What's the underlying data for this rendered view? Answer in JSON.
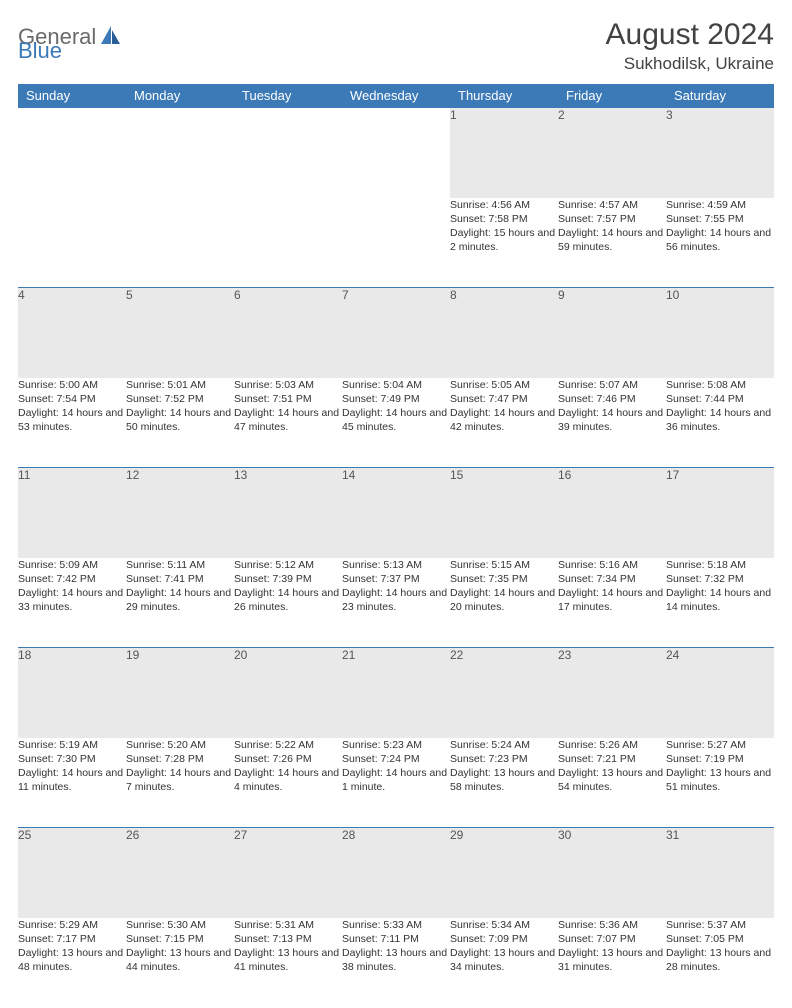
{
  "logo": {
    "general": "General",
    "blue": "Blue"
  },
  "header": {
    "month_title": "August 2024",
    "location": "Sukhodilsk, Ukraine"
  },
  "colors": {
    "accent": "#3b79b7",
    "header_text": "#ffffff",
    "daynum_bg": "#e9e9e9",
    "body_text": "#333333"
  },
  "day_headers": [
    "Sunday",
    "Monday",
    "Tuesday",
    "Wednesday",
    "Thursday",
    "Friday",
    "Saturday"
  ],
  "weeks": [
    {
      "nums": [
        "",
        "",
        "",
        "",
        "1",
        "2",
        "3"
      ],
      "info": [
        "",
        "",
        "",
        "",
        "Sunrise: 4:56 AM\nSunset: 7:58 PM\nDaylight: 15 hours and 2 minutes.",
        "Sunrise: 4:57 AM\nSunset: 7:57 PM\nDaylight: 14 hours and 59 minutes.",
        "Sunrise: 4:59 AM\nSunset: 7:55 PM\nDaylight: 14 hours and 56 minutes."
      ]
    },
    {
      "nums": [
        "4",
        "5",
        "6",
        "7",
        "8",
        "9",
        "10"
      ],
      "info": [
        "Sunrise: 5:00 AM\nSunset: 7:54 PM\nDaylight: 14 hours and 53 minutes.",
        "Sunrise: 5:01 AM\nSunset: 7:52 PM\nDaylight: 14 hours and 50 minutes.",
        "Sunrise: 5:03 AM\nSunset: 7:51 PM\nDaylight: 14 hours and 47 minutes.",
        "Sunrise: 5:04 AM\nSunset: 7:49 PM\nDaylight: 14 hours and 45 minutes.",
        "Sunrise: 5:05 AM\nSunset: 7:47 PM\nDaylight: 14 hours and 42 minutes.",
        "Sunrise: 5:07 AM\nSunset: 7:46 PM\nDaylight: 14 hours and 39 minutes.",
        "Sunrise: 5:08 AM\nSunset: 7:44 PM\nDaylight: 14 hours and 36 minutes."
      ]
    },
    {
      "nums": [
        "11",
        "12",
        "13",
        "14",
        "15",
        "16",
        "17"
      ],
      "info": [
        "Sunrise: 5:09 AM\nSunset: 7:42 PM\nDaylight: 14 hours and 33 minutes.",
        "Sunrise: 5:11 AM\nSunset: 7:41 PM\nDaylight: 14 hours and 29 minutes.",
        "Sunrise: 5:12 AM\nSunset: 7:39 PM\nDaylight: 14 hours and 26 minutes.",
        "Sunrise: 5:13 AM\nSunset: 7:37 PM\nDaylight: 14 hours and 23 minutes.",
        "Sunrise: 5:15 AM\nSunset: 7:35 PM\nDaylight: 14 hours and 20 minutes.",
        "Sunrise: 5:16 AM\nSunset: 7:34 PM\nDaylight: 14 hours and 17 minutes.",
        "Sunrise: 5:18 AM\nSunset: 7:32 PM\nDaylight: 14 hours and 14 minutes."
      ]
    },
    {
      "nums": [
        "18",
        "19",
        "20",
        "21",
        "22",
        "23",
        "24"
      ],
      "info": [
        "Sunrise: 5:19 AM\nSunset: 7:30 PM\nDaylight: 14 hours and 11 minutes.",
        "Sunrise: 5:20 AM\nSunset: 7:28 PM\nDaylight: 14 hours and 7 minutes.",
        "Sunrise: 5:22 AM\nSunset: 7:26 PM\nDaylight: 14 hours and 4 minutes.",
        "Sunrise: 5:23 AM\nSunset: 7:24 PM\nDaylight: 14 hours and 1 minute.",
        "Sunrise: 5:24 AM\nSunset: 7:23 PM\nDaylight: 13 hours and 58 minutes.",
        "Sunrise: 5:26 AM\nSunset: 7:21 PM\nDaylight: 13 hours and 54 minutes.",
        "Sunrise: 5:27 AM\nSunset: 7:19 PM\nDaylight: 13 hours and 51 minutes."
      ]
    },
    {
      "nums": [
        "25",
        "26",
        "27",
        "28",
        "29",
        "30",
        "31"
      ],
      "info": [
        "Sunrise: 5:29 AM\nSunset: 7:17 PM\nDaylight: 13 hours and 48 minutes.",
        "Sunrise: 5:30 AM\nSunset: 7:15 PM\nDaylight: 13 hours and 44 minutes.",
        "Sunrise: 5:31 AM\nSunset: 7:13 PM\nDaylight: 13 hours and 41 minutes.",
        "Sunrise: 5:33 AM\nSunset: 7:11 PM\nDaylight: 13 hours and 38 minutes.",
        "Sunrise: 5:34 AM\nSunset: 7:09 PM\nDaylight: 13 hours and 34 minutes.",
        "Sunrise: 5:36 AM\nSunset: 7:07 PM\nDaylight: 13 hours and 31 minutes.",
        "Sunrise: 5:37 AM\nSunset: 7:05 PM\nDaylight: 13 hours and 28 minutes."
      ]
    }
  ]
}
